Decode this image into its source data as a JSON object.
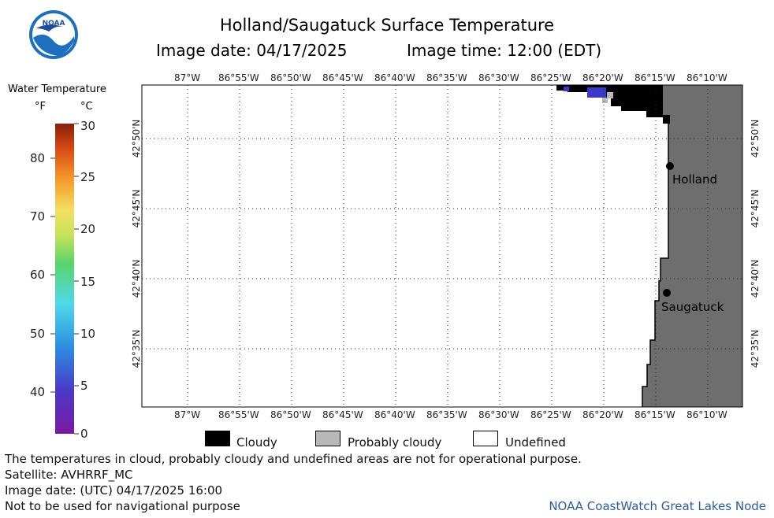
{
  "header": {
    "title": "Holland/Saugatuck Surface Temperature",
    "image_date_label": "Image date: 04/17/2025",
    "image_time_label": "Image time: 12:00 (EDT)"
  },
  "logo": {
    "text": "NOAA",
    "colors": {
      "outer": "#1f6fbf",
      "inner": "#ffffff",
      "bird": "#1e4e9a"
    }
  },
  "colorbar": {
    "title": "Water Temperature",
    "unit_f": "°F",
    "unit_c": "°C",
    "f_ticks": [
      "80",
      "70",
      "60",
      "50",
      "40"
    ],
    "c_ticks": [
      "30",
      "25",
      "20",
      "15",
      "10",
      "5",
      "0"
    ]
  },
  "map": {
    "lon_labels": [
      "87°W",
      "86°55'W",
      "86°50'W",
      "86°45'W",
      "86°40'W",
      "86°35'W",
      "86°30'W",
      "86°25'W",
      "86°20'W",
      "86°15'W",
      "86°10'W"
    ],
    "lat_labels": [
      "42°50'N",
      "42°45'N",
      "42°40'N",
      "42°35'N"
    ],
    "places": [
      {
        "name": "Holland"
      },
      {
        "name": "Saugatuck"
      }
    ],
    "colors": {
      "land": "#6e6e6e",
      "cloudy": "#000000",
      "probably_cloudy": "#b8b8b8",
      "water_cold": "#3c38c8"
    }
  },
  "key": {
    "cloudy": "Cloudy",
    "probably_cloudy": "Probably cloudy",
    "undefined": "Undefined"
  },
  "footer": {
    "disclaimer": "The temperatures in cloud, probably cloudy and undefined areas are not for operational purpose.",
    "satellite": "Satellite: AVHRRF_MC",
    "utc_date": "Image date: (UTC) 04/17/2025  16:00",
    "nav_warning": "Not to be used for navigational purpose",
    "credit": "NOAA CoastWatch Great Lakes Node"
  }
}
